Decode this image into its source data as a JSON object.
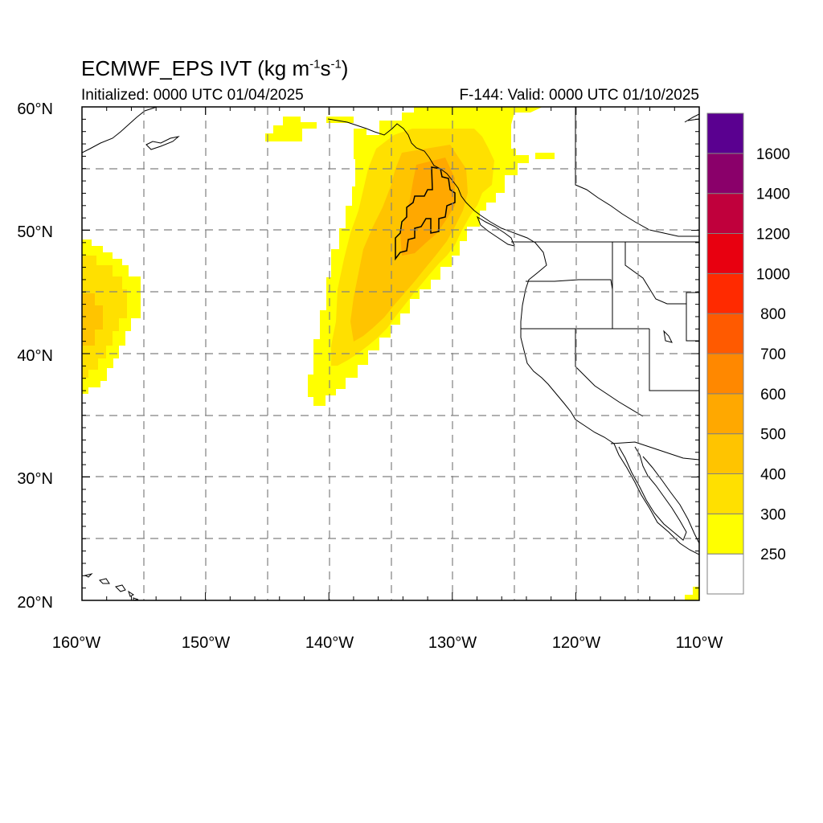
{
  "title": {
    "main": "ECMWF_EPS IVT (kg m",
    "sup1": "-1",
    "mid": "s",
    "sup2": "-1",
    "end": ")"
  },
  "subtitle_left": "Initialized: 0000 UTC 01/04/2025",
  "subtitle_right": "F-144: Valid: 0000 UTC 01/10/2025",
  "map": {
    "lon_range": [
      -160,
      -110
    ],
    "lat_range": [
      20,
      60
    ],
    "x_tick_labels": [
      "160°W",
      "150°W",
      "140°W",
      "130°W",
      "120°W",
      "110°W"
    ],
    "y_tick_labels": [
      "60°N",
      "50°N",
      "40°N",
      "30°N",
      "20°N"
    ],
    "grid": "dashed, every 5 degrees"
  },
  "colorbar": {
    "levels": [
      "250",
      "300",
      "400",
      "500",
      "600",
      "700",
      "800",
      "1000",
      "1200",
      "1400",
      "1600"
    ],
    "colors": [
      "#ffffff",
      "#ffff00",
      "#ffe000",
      "#ffc400",
      "#ffa800",
      "#ff8800",
      "#ff5a00",
      "#ff2a00",
      "#e80010",
      "#c0003c",
      "#8a006a",
      "#5a0090"
    ]
  },
  "ivt_colors": {
    "c250": "#ffff00",
    "c300": "#ffe000",
    "c400": "#ffc400",
    "c500": "#ffa800"
  }
}
